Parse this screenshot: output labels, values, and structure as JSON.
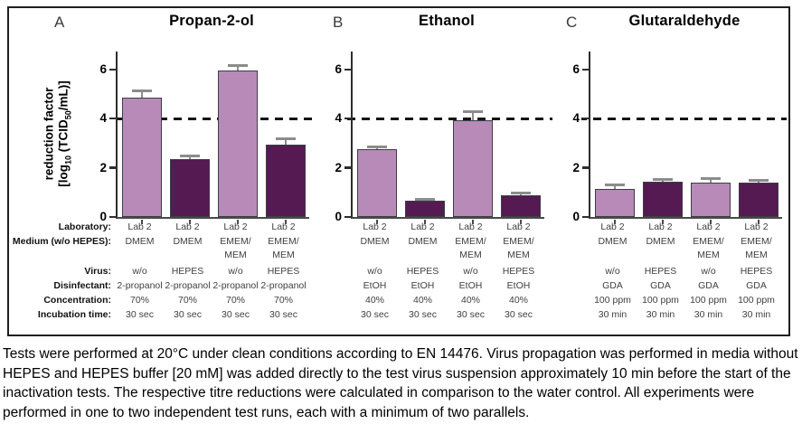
{
  "figure": {
    "y_axis": {
      "title_line1": "reduction factor",
      "title_l2": {
        "a": "[log",
        "sub1": "10",
        "b": " (TCID",
        "sub2": "50",
        "c": "/mL)]"
      },
      "ticks": [
        0,
        2,
        4,
        6
      ],
      "ymax": 6.73
    },
    "threshold": 4,
    "row_headers": {
      "laboratory": "Laboratory:",
      "medium": "Medium (w/o HEPES):",
      "virus": "Virus:",
      "disinfectant": "Disinfectant:",
      "concentration": "Concentration:",
      "incubation_time": "Incubation time:"
    },
    "colors": {
      "light_bar": "#b78ab7",
      "dark_bar": "#551a52",
      "bar_border": "#3d3d46",
      "error_bar": "#8c8c8c",
      "dashed_line": "#141414"
    }
  },
  "chart_data": [
    {
      "type": "bar",
      "panel": "A",
      "title": "Propan-2-ol",
      "ylabel": "reduction factor [log10 (TCID50/mL)]",
      "yticks": [
        0,
        2,
        4,
        6
      ],
      "ylim": [
        0,
        6.73
      ],
      "threshold_line": 4,
      "values": [
        4.85,
        2.35,
        5.95,
        2.95
      ],
      "errors": [
        0.28,
        0.12,
        0.2,
        0.22
      ],
      "bar_colors": [
        "light",
        "dark",
        "light",
        "dark"
      ],
      "columns": {
        "laboratory": [
          "Lab 2",
          "Lab 2",
          "Lab 2",
          "Lab 2"
        ],
        "medium_line1": [
          "DMEM",
          "DMEM",
          "EMEM/",
          "EMEM/"
        ],
        "medium_line2": [
          "",
          "",
          "MEM",
          "MEM"
        ],
        "virus": [
          "w/o",
          "HEPES",
          "w/o",
          "HEPES"
        ],
        "disinfectant": [
          "2-propanol",
          "2-propanol",
          "2-propanol",
          "2-propanol"
        ],
        "concentration": [
          "70%",
          "70%",
          "70%",
          "70%"
        ],
        "incubation_time": [
          "30 sec",
          "30 sec",
          "30 sec",
          "30 sec"
        ]
      }
    },
    {
      "type": "bar",
      "panel": "B",
      "title": "Ethanol",
      "ylabel": "reduction factor [log10 (TCID50/mL)]",
      "yticks": [
        0,
        2,
        4,
        6
      ],
      "ylim": [
        0,
        6.73
      ],
      "threshold_line": 4,
      "values": [
        2.75,
        0.65,
        3.95,
        0.9
      ],
      "errors": [
        0.1,
        0.06,
        0.35,
        0.06
      ],
      "bar_colors": [
        "light",
        "dark",
        "light",
        "dark"
      ],
      "columns": {
        "laboratory": [
          "Lab 2",
          "Lab 2",
          "Lab 2",
          "Lab 2"
        ],
        "medium_line1": [
          "DMEM",
          "DMEM",
          "EMEM/",
          "EMEM/"
        ],
        "medium_line2": [
          "",
          "",
          "MEM",
          "MEM"
        ],
        "virus": [
          "w/o",
          "HEPES",
          "w/o",
          "HEPES"
        ],
        "disinfectant": [
          "EtOH",
          "EtOH",
          "EtOH",
          "EtOH"
        ],
        "concentration": [
          "40%",
          "40%",
          "40%",
          "40%"
        ],
        "incubation_time": [
          "30 sec",
          "30 sec",
          "30 sec",
          "30 sec"
        ]
      }
    },
    {
      "type": "bar",
      "panel": "C",
      "title": "Glutaraldehyde",
      "ylabel": "reduction factor [log10 (TCID50/mL)]",
      "yticks": [
        0,
        2,
        4,
        6
      ],
      "ylim": [
        0,
        6.73
      ],
      "threshold_line": 4,
      "values": [
        1.15,
        1.45,
        1.4,
        1.4
      ],
      "errors": [
        0.15,
        0.07,
        0.18,
        0.1
      ],
      "bar_colors": [
        "light",
        "dark",
        "light",
        "dark"
      ],
      "columns": {
        "laboratory": [
          "Lab 2",
          "Lab 2",
          "Lab 2",
          "Lab 2"
        ],
        "medium_line1": [
          "DMEM",
          "DMEM",
          "EMEM/",
          "EMEM/"
        ],
        "medium_line2": [
          "",
          "",
          "MEM",
          "MEM"
        ],
        "virus": [
          "w/o",
          "HEPES",
          "w/o",
          "HEPES"
        ],
        "disinfectant": [
          "GDA",
          "GDA",
          "GDA",
          "GDA"
        ],
        "concentration": [
          "100 ppm",
          "100 ppm",
          "100 ppm",
          "100 ppm"
        ],
        "incubation_time": [
          "30 min",
          "30 min",
          "30 min",
          "30 min"
        ]
      }
    }
  ],
  "caption": "Tests were performed at 20°C under clean conditions according to EN 14476. Virus propagation was performed in media without HEPES and HEPES buffer [20 mM] was added directly to the test virus suspension approximately 10 min before the start of the inactivation tests. The respective titre reductions were calculated in comparison to the water control. All experiments were performed in one to two independent test runs, each with a minimum of two parallels."
}
